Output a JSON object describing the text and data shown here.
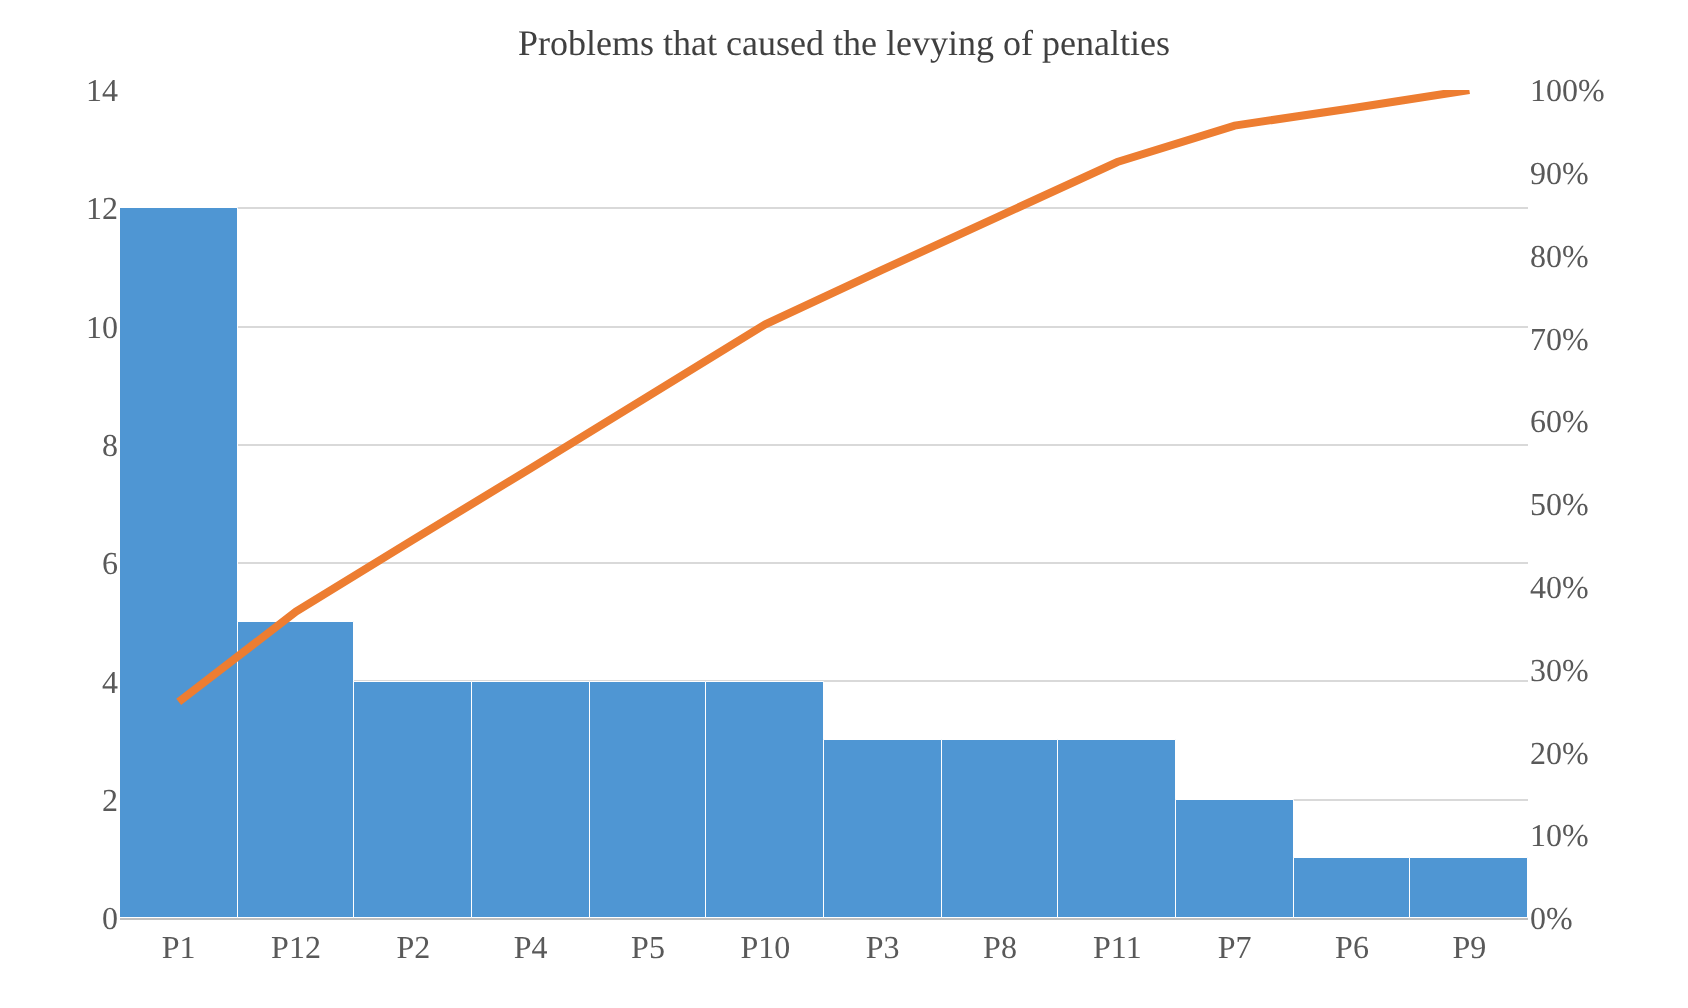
{
  "chart_data": {
    "type": "bar",
    "title": "Problems that caused the levying of penalties",
    "categories": [
      "P1",
      "P12",
      "P2",
      "P4",
      "P5",
      "P10",
      "P3",
      "P8",
      "P11",
      "P7",
      "P6",
      "P9"
    ],
    "series": [
      {
        "color": "#4f96d3",
        "values": [
          12,
          5,
          4,
          4,
          4,
          4,
          3,
          3,
          3,
          2,
          1,
          1
        ]
      },
      {
        "type": "line",
        "axis": "y2",
        "color": "#ed7d31",
        "values": [
          26.1,
          37.0,
          45.7,
          54.3,
          63.0,
          71.7,
          78.3,
          84.8,
          91.3,
          95.7,
          97.8,
          100
        ]
      }
    ],
    "ylim": [
      0,
      14
    ],
    "yticks": [
      0,
      2,
      4,
      6,
      8,
      10,
      12,
      14
    ],
    "y2lim": [
      0,
      100
    ],
    "y2ticks": [
      {
        "value": 0,
        "label": "0%"
      },
      {
        "value": 10,
        "label": "10%"
      },
      {
        "value": 20,
        "label": "20%"
      },
      {
        "value": 30,
        "label": "30%"
      },
      {
        "value": 40,
        "label": "40%"
      },
      {
        "value": 50,
        "label": "50%"
      },
      {
        "value": 60,
        "label": "60%"
      },
      {
        "value": 70,
        "label": "70%"
      },
      {
        "value": 80,
        "label": "80%"
      },
      {
        "value": 90,
        "label": "90%"
      },
      {
        "value": 100,
        "label": "100%"
      }
    ],
    "grid": "y",
    "legend": false,
    "marker": "none",
    "line_style": "solid"
  }
}
